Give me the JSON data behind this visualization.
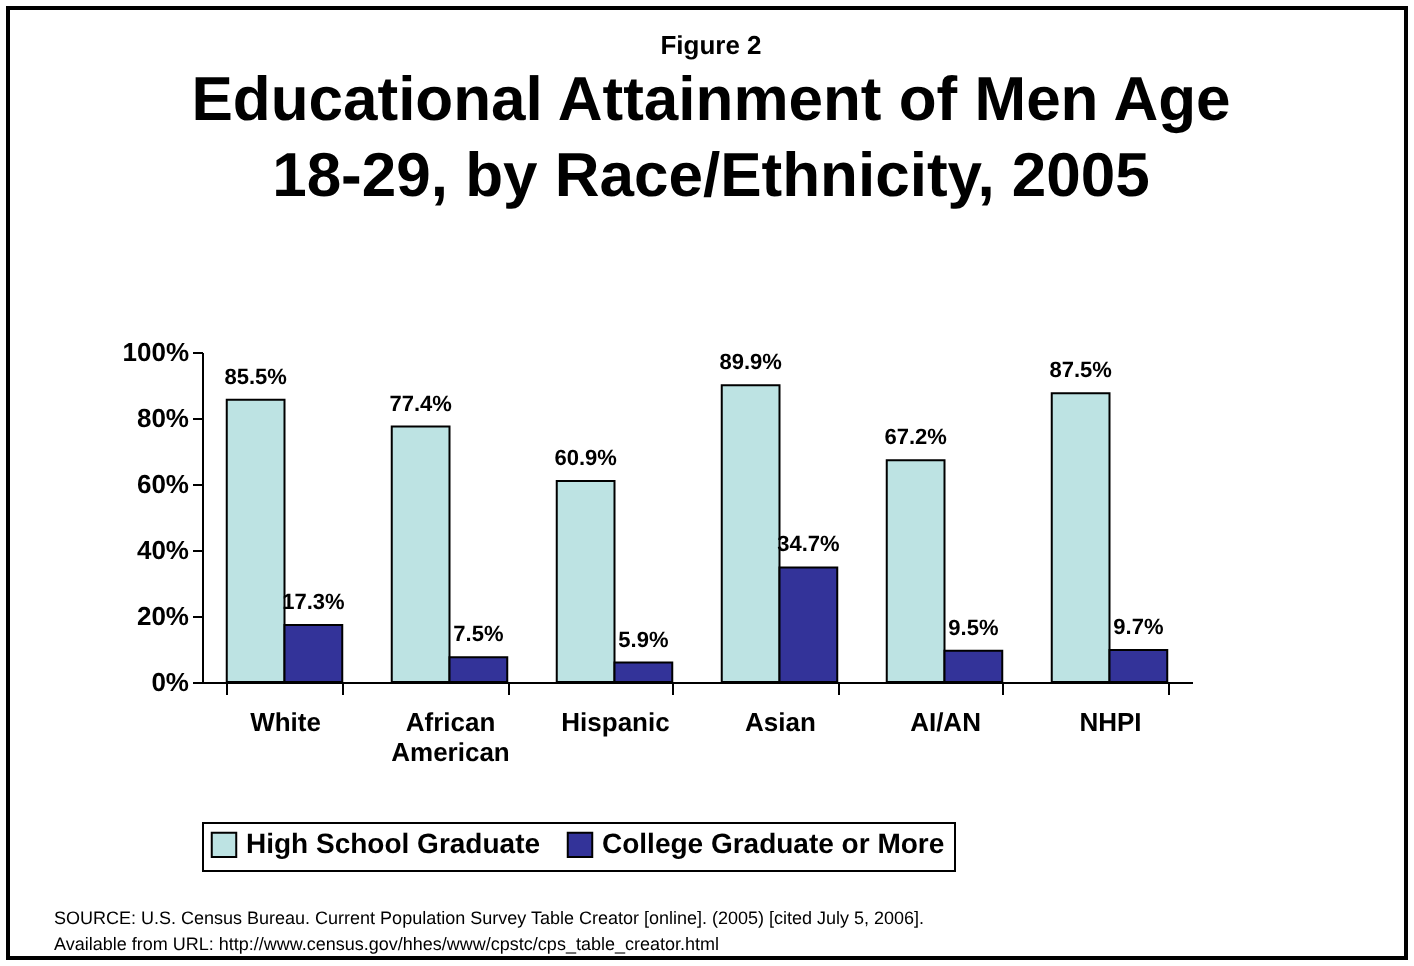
{
  "chart_data": {
    "type": "bar",
    "title": "Educational Attainment of Men Age 18-29, by Race/Ethnicity, 2005",
    "subtitle": "Figure 2",
    "categories": [
      "White",
      "African American",
      "Hispanic",
      "Asian",
      "AI/AN",
      "NHPI"
    ],
    "series": [
      {
        "name": "High School Graduate",
        "color": "#bde3e3",
        "values": [
          85.5,
          77.4,
          60.9,
          89.9,
          67.2,
          87.5
        ],
        "value_labels": [
          "85.5%",
          "77.4%",
          "60.9%",
          "89.9%",
          "67.2%",
          "87.5%"
        ]
      },
      {
        "name": "College Graduate or More",
        "color": "#333399",
        "values": [
          17.3,
          7.5,
          5.9,
          34.7,
          9.5,
          9.7
        ],
        "value_labels": [
          "17.3%",
          "7.5%",
          "5.9%",
          "34.7%",
          "9.5%",
          "9.7%"
        ]
      }
    ],
    "ylim": [
      0,
      100
    ],
    "yticks": [
      {
        "value": 0,
        "label": "0%"
      },
      {
        "value": 20,
        "label": "20%"
      },
      {
        "value": 40,
        "label": "40%"
      },
      {
        "value": 60,
        "label": "60%"
      },
      {
        "value": 80,
        "label": "80%"
      },
      {
        "value": 100,
        "label": "100%"
      }
    ],
    "grid": false,
    "legend": "bottom",
    "annotations": [
      "SOURCE: U.S. Census Bureau. Current Population Survey Table Creator [online]. (2005) [cited July 5, 2006].",
      "Available from URL: http://www.census.gov/hhes/www/cpstc/cps_table_creator.html"
    ]
  }
}
